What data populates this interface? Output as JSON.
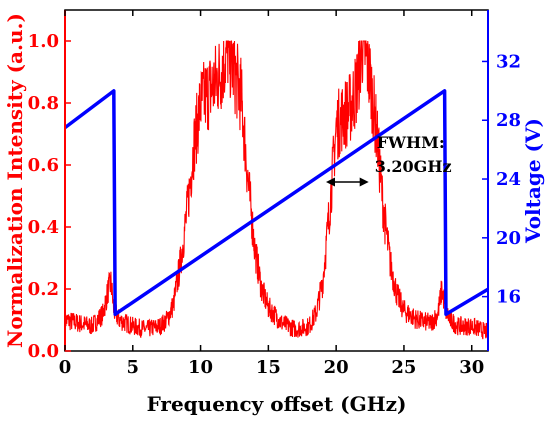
{
  "chart_data": {
    "type": "line",
    "xlabel": "Frequency offset (GHz)",
    "ylabel": "Normalization Intensity (a.u.)",
    "y2label": "Voltage (V)",
    "xlim": [
      0,
      31.2
    ],
    "ylim": [
      0,
      1.1
    ],
    "y2lim": [
      12.3,
      35.5
    ],
    "x_ticks": [
      "0",
      "5",
      "10",
      "15",
      "20",
      "25",
      "30"
    ],
    "y_ticks": [
      "0.0",
      "0.2",
      "0.4",
      "0.6",
      "0.8",
      "1.0"
    ],
    "y2_ticks": [
      "16",
      "20",
      "24",
      "28",
      "32"
    ],
    "grid": false,
    "colors": {
      "intensity": "#ff0000",
      "voltage": "#0000ff",
      "axes": "#000000"
    },
    "annotation": {
      "line1": "FWHM:",
      "line2": "3.20GHz",
      "arrow_x": [
        19.25,
        22.4
      ],
      "arrow_y": 0.545
    },
    "series": [
      {
        "axis": "left",
        "x": [
          0,
          1,
          2,
          2.8,
          3.2,
          3.4,
          3.6,
          4,
          5,
          6,
          7,
          7.5,
          8,
          8.5,
          9,
          9.5,
          10,
          10.5,
          11,
          11.5,
          12,
          12.5,
          13,
          13.5,
          14,
          14.5,
          15,
          16,
          17,
          18,
          18.5,
          19,
          19.5,
          20,
          20.5,
          21,
          21.5,
          22,
          22.5,
          23,
          23.5,
          24,
          24.5,
          25,
          26,
          27,
          27.5,
          27.8,
          28.1,
          28.4,
          29,
          30,
          31.2
        ],
        "values": [
          0.1,
          0.09,
          0.08,
          0.12,
          0.2,
          0.22,
          0.13,
          0.1,
          0.08,
          0.07,
          0.08,
          0.1,
          0.15,
          0.28,
          0.45,
          0.66,
          0.8,
          0.83,
          0.86,
          0.9,
          0.97,
          0.9,
          0.82,
          0.55,
          0.33,
          0.2,
          0.14,
          0.09,
          0.07,
          0.08,
          0.12,
          0.22,
          0.45,
          0.72,
          0.76,
          0.78,
          0.85,
          1.0,
          0.88,
          0.7,
          0.45,
          0.28,
          0.18,
          0.13,
          0.1,
          0.09,
          0.12,
          0.2,
          0.13,
          0.1,
          0.08,
          0.08,
          0.06
        ]
      },
      {
        "axis": "right",
        "x": [
          0,
          3.6,
          3.7,
          28.0,
          28.1,
          31.2
        ],
        "values": [
          27.5,
          30.0,
          14.8,
          30.0,
          14.8,
          16.5
        ]
      }
    ]
  }
}
